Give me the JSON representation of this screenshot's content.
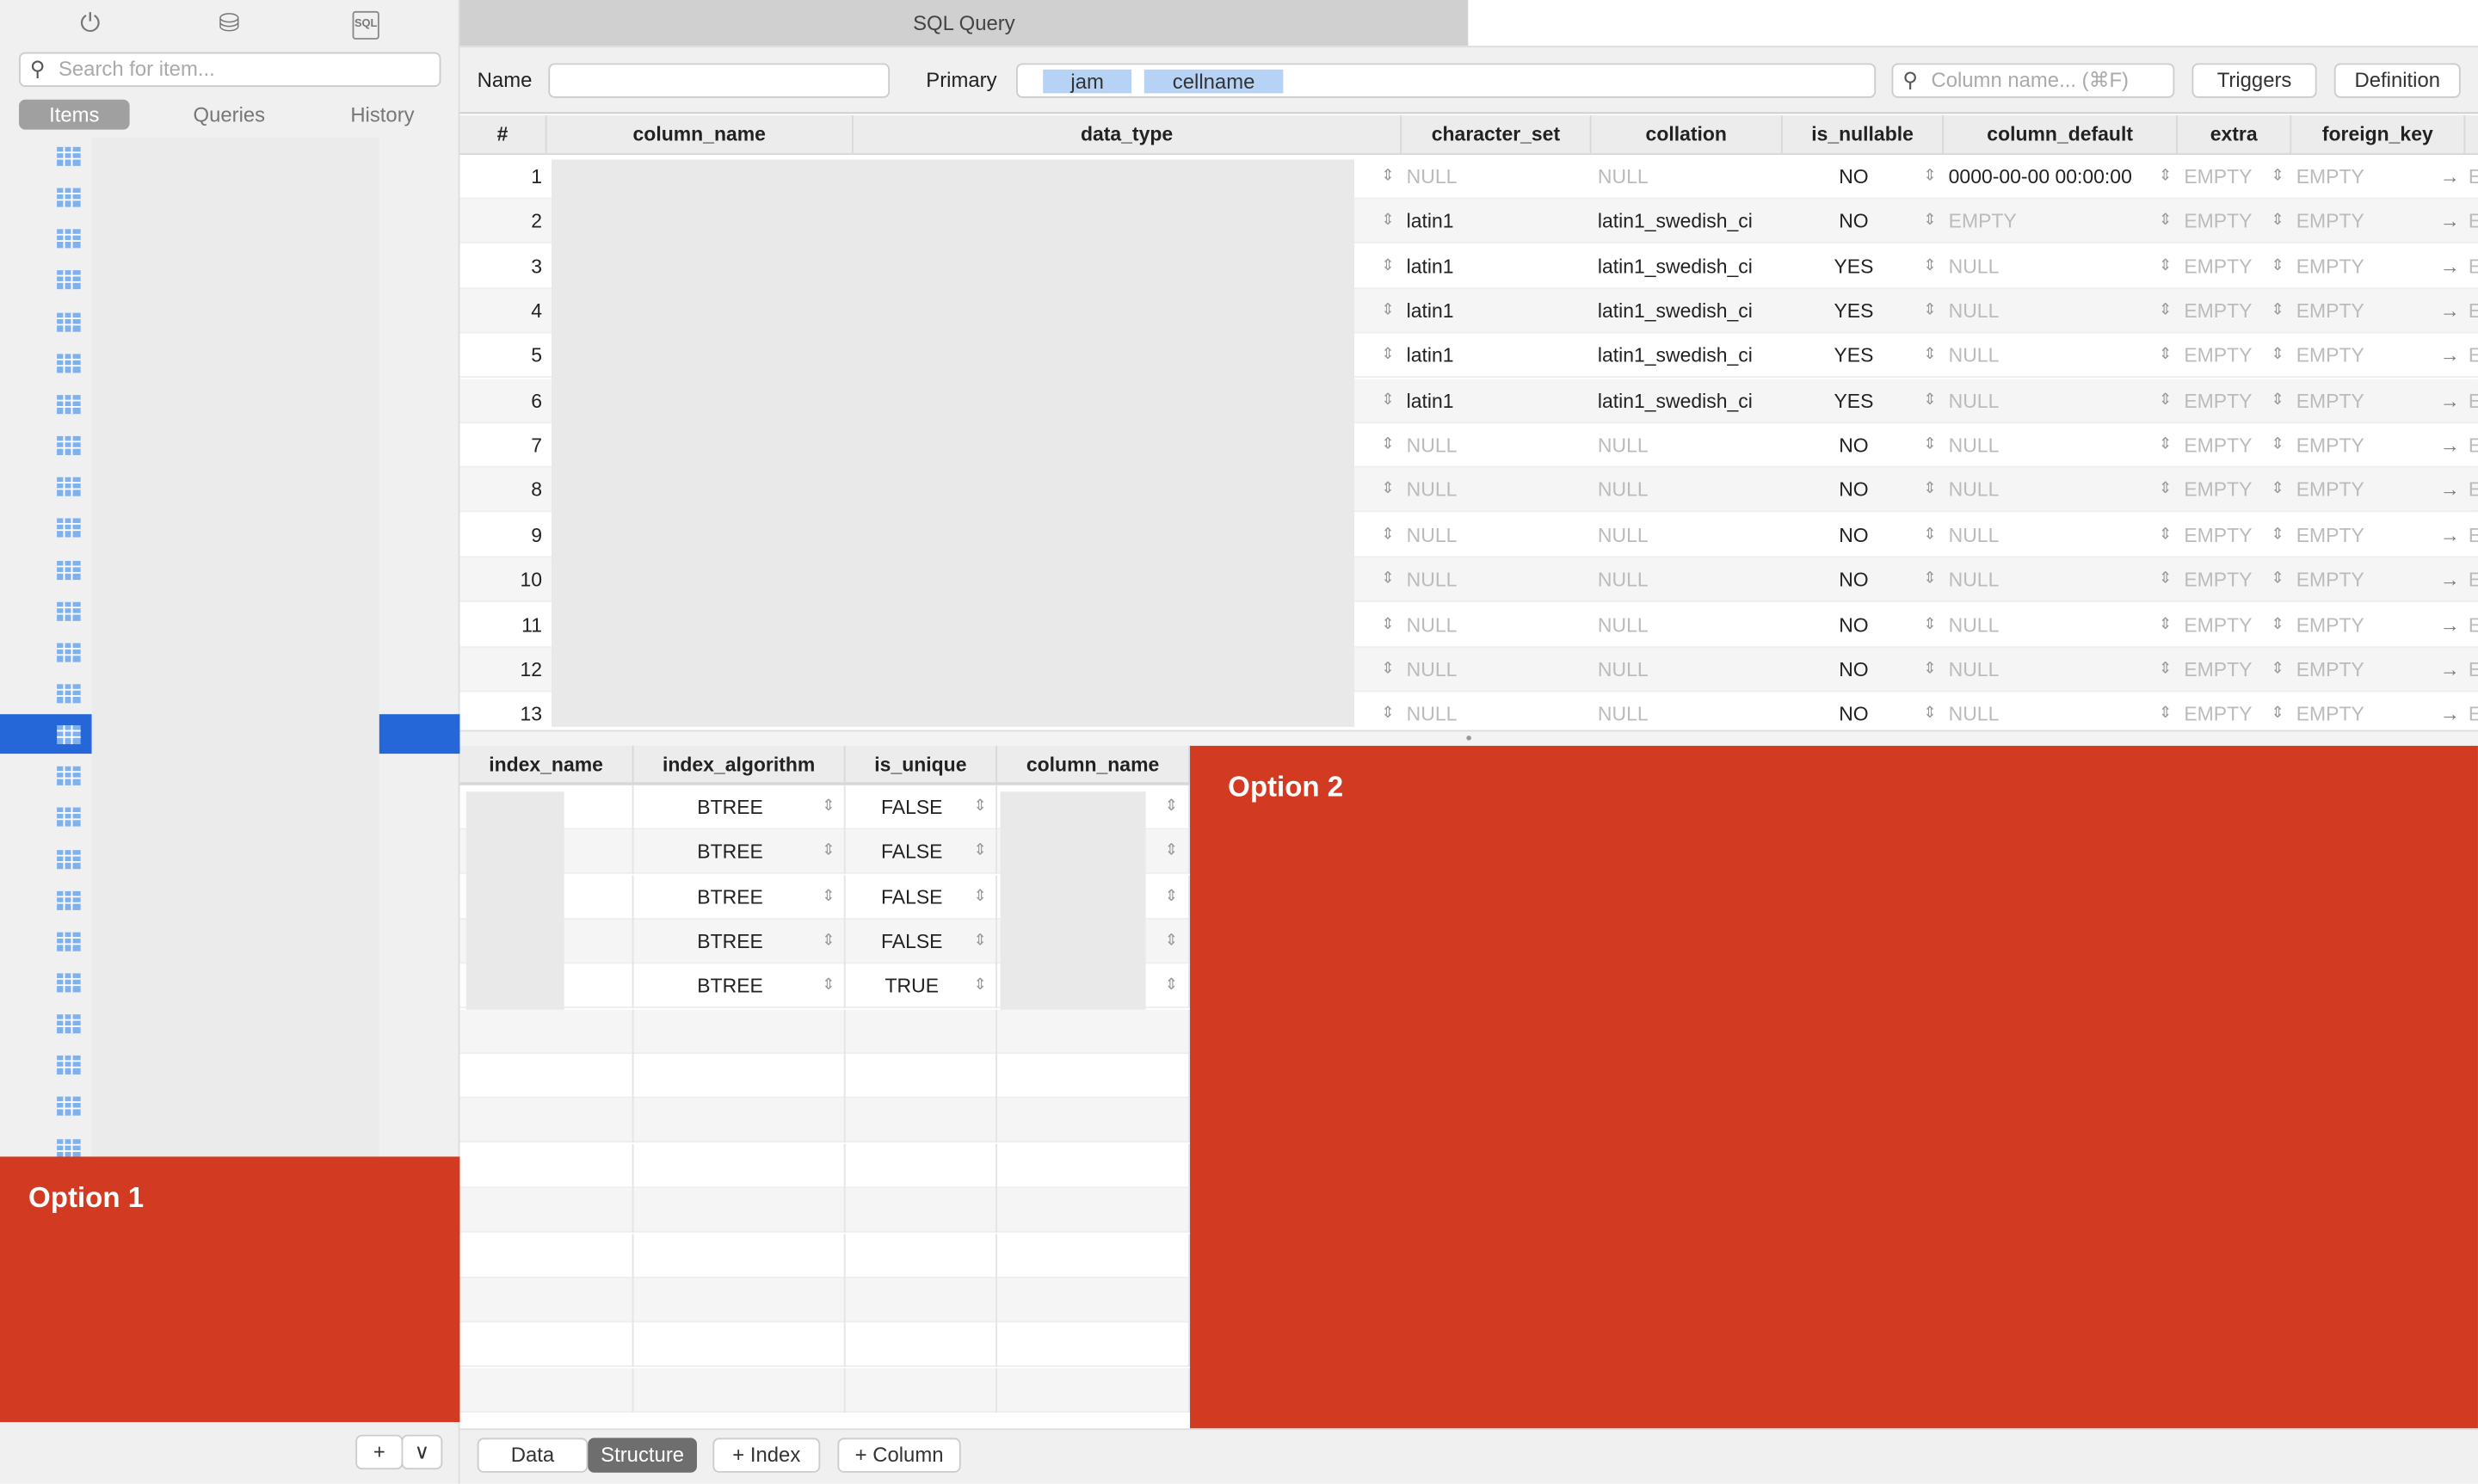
{
  "sidebar": {
    "icons": [
      "plug-icon",
      "database-icon",
      "sql-file-icon"
    ],
    "search_placeholder": "Search for item...",
    "tabs": [
      "Items",
      "Queries",
      "History"
    ],
    "active_tab": "Items",
    "item_count": 25,
    "selected_index": 14,
    "add_label": "+",
    "menu_label": "∨"
  },
  "option1": "Option 1",
  "option2": "Option 2",
  "window_tab": "SQL Query",
  "toolbar": {
    "name_label": "Name",
    "name_value": "",
    "primary_label": "Primary",
    "primary_keys": [
      "jam",
      "cellname"
    ],
    "column_search_placeholder": "Column name... (⌘F)",
    "triggers": "Triggers",
    "definition": "Definition"
  },
  "columns_table": {
    "headers": [
      "#",
      "column_name",
      "data_type",
      "character_set",
      "collation",
      "is_nullable",
      "column_default",
      "extra",
      "foreign_key"
    ],
    "rows": [
      [
        "1",
        "NULL",
        "NULL",
        "NO",
        "0000-00-00 00:00:00",
        "EMPTY",
        "EMPTY"
      ],
      [
        "2",
        "latin1",
        "latin1_swedish_ci",
        "NO",
        "EMPTY",
        "EMPTY",
        "EMPTY"
      ],
      [
        "3",
        "latin1",
        "latin1_swedish_ci",
        "YES",
        "NULL",
        "EMPTY",
        "EMPTY"
      ],
      [
        "4",
        "latin1",
        "latin1_swedish_ci",
        "YES",
        "NULL",
        "EMPTY",
        "EMPTY"
      ],
      [
        "5",
        "latin1",
        "latin1_swedish_ci",
        "YES",
        "NULL",
        "EMPTY",
        "EMPTY"
      ],
      [
        "6",
        "latin1",
        "latin1_swedish_ci",
        "YES",
        "NULL",
        "EMPTY",
        "EMPTY"
      ],
      [
        "7",
        "NULL",
        "NULL",
        "NO",
        "NULL",
        "EMPTY",
        "EMPTY"
      ],
      [
        "8",
        "NULL",
        "NULL",
        "NO",
        "NULL",
        "EMPTY",
        "EMPTY"
      ],
      [
        "9",
        "NULL",
        "NULL",
        "NO",
        "NULL",
        "EMPTY",
        "EMPTY"
      ],
      [
        "10",
        "NULL",
        "NULL",
        "NO",
        "NULL",
        "EMPTY",
        "EMPTY"
      ],
      [
        "11",
        "NULL",
        "NULL",
        "NO",
        "NULL",
        "EMPTY",
        "EMPTY"
      ],
      [
        "12",
        "NULL",
        "NULL",
        "NO",
        "NULL",
        "EMPTY",
        "EMPTY"
      ],
      [
        "13",
        "NULL",
        "NULL",
        "NO",
        "NULL",
        "EMPTY",
        "EMPTY"
      ]
    ],
    "overflow_text": "E"
  },
  "index_table": {
    "headers": [
      "index_name",
      "index_algorithm",
      "is_unique",
      "column_name"
    ],
    "rows": [
      [
        "BTREE",
        "FALSE"
      ],
      [
        "BTREE",
        "FALSE"
      ],
      [
        "BTREE",
        "FALSE"
      ],
      [
        "BTREE",
        "FALSE"
      ],
      [
        "BTREE",
        "TRUE"
      ]
    ]
  },
  "bottom_tabs": {
    "data": "Data",
    "structure": "Structure",
    "active": "Structure",
    "add_index": "+ Index",
    "add_column": "+ Column"
  },
  "colors": {
    "accent": "#2566d8",
    "option_red": "#d23a22",
    "token": "#b6d3f5"
  }
}
